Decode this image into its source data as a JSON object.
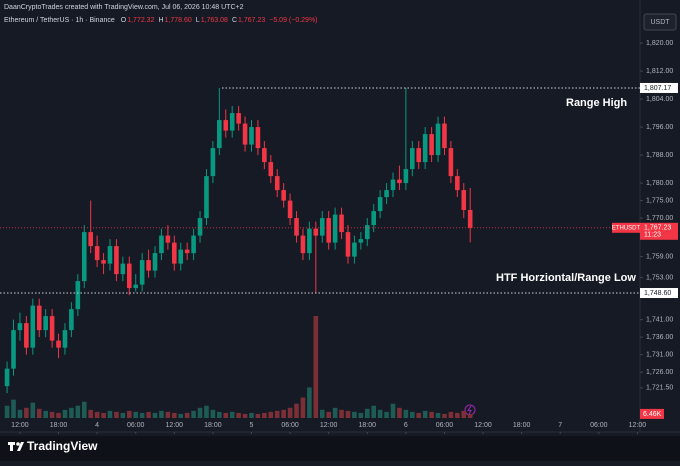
{
  "header": {
    "credit": "DaanCryptoTrades created with TradingView.com, Jul 06, 2026 10:48 UTC+2",
    "symbol": "Ethereum / TetherUS · 1h · Binance",
    "ohlc": [
      {
        "key": "O",
        "value": "1,772.32"
      },
      {
        "key": "H",
        "value": "1,778.60"
      },
      {
        "key": "L",
        "value": "1,763.08"
      },
      {
        "key": "C",
        "value": "1,767.23"
      }
    ],
    "change": "−5.09 (−0.29%)"
  },
  "chart_data": {
    "type": "candlestick",
    "x": [
      -2,
      -1,
      0,
      1,
      2,
      3,
      4,
      5,
      6,
      7,
      8,
      9,
      10,
      11,
      12,
      13,
      14,
      15,
      16,
      17,
      18,
      19,
      20,
      21,
      22,
      23,
      24,
      25,
      26,
      27,
      28,
      29,
      30,
      31,
      32,
      33,
      34,
      35,
      36,
      37,
      38,
      39,
      40,
      41,
      42,
      43,
      44,
      45,
      46,
      47,
      48,
      49,
      50,
      51,
      52,
      53,
      54,
      55,
      56,
      57,
      58,
      59,
      60,
      61,
      62,
      63,
      64,
      65,
      66,
      67,
      68,
      69,
      70
    ],
    "open": [
      1722,
      1727,
      1738,
      1740,
      1733,
      1745,
      1738,
      1742,
      1735,
      1733,
      1738,
      1744,
      1752,
      1766,
      1762,
      1758,
      1757,
      1762,
      1754,
      1757,
      1750,
      1751,
      1758,
      1755,
      1760,
      1765,
      1763,
      1757,
      1761,
      1760,
      1765,
      1770,
      1782,
      1790,
      1798,
      1795,
      1800,
      1797,
      1791,
      1796,
      1790,
      1786,
      1782,
      1778,
      1775,
      1770,
      1765,
      1760,
      1767,
      1765,
      1770,
      1763,
      1771,
      1766,
      1759,
      1763,
      1764,
      1768,
      1772,
      1776,
      1778,
      1781,
      1780,
      1784,
      1790,
      1786,
      1794,
      1788,
      1797,
      1790,
      1782,
      1778,
      1772.32
    ],
    "high": [
      1729,
      1741,
      1743,
      1742,
      1747,
      1747,
      1744,
      1744,
      1737,
      1740,
      1746,
      1754,
      1768,
      1775,
      1765,
      1760,
      1764,
      1764,
      1759,
      1759,
      1754,
      1760,
      1761,
      1762,
      1767,
      1768,
      1765,
      1763,
      1763,
      1767,
      1772,
      1784,
      1792,
      1807.17,
      1801,
      1802,
      1802,
      1799,
      1798,
      1798,
      1792,
      1788,
      1784,
      1780,
      1777,
      1772,
      1767,
      1769,
      1769,
      1772,
      1772,
      1773,
      1773,
      1768,
      1765,
      1766,
      1770,
      1774,
      1778,
      1780,
      1783,
      1785,
      1807.17,
      1792,
      1792,
      1796,
      1796,
      1799,
      1799,
      1792,
      1784,
      1780,
      1778.6
    ],
    "low": [
      1720,
      1725,
      1735,
      1731,
      1731,
      1736,
      1736,
      1733,
      1730,
      1731,
      1736,
      1742,
      1750,
      1760,
      1756,
      1754,
      1755,
      1752,
      1752,
      1748,
      1749,
      1749,
      1753,
      1753,
      1758,
      1761,
      1755,
      1755,
      1758,
      1758,
      1763,
      1768,
      1780,
      1788,
      1793,
      1793,
      1795,
      1789,
      1789,
      1788,
      1784,
      1780,
      1776,
      1773,
      1768,
      1763,
      1758,
      1758,
      1748.6,
      1763,
      1761,
      1761,
      1764,
      1757,
      1757,
      1761,
      1762,
      1766,
      1770,
      1774,
      1776,
      1778,
      1778,
      1782,
      1784,
      1784,
      1786,
      1786,
      1788,
      1780,
      1776,
      1770,
      1763.08
    ],
    "close": [
      1727,
      1738,
      1740,
      1733,
      1745,
      1738,
      1742,
      1735,
      1733,
      1738,
      1744,
      1752,
      1766,
      1762,
      1758,
      1757,
      1762,
      1754,
      1757,
      1750,
      1751,
      1758,
      1755,
      1760,
      1765,
      1763,
      1757,
      1761,
      1760,
      1765,
      1770,
      1782,
      1790,
      1798,
      1795,
      1800,
      1797,
      1791,
      1796,
      1790,
      1786,
      1782,
      1778,
      1775,
      1770,
      1765,
      1760,
      1767,
      1765,
      1770,
      1763,
      1771,
      1766,
      1759,
      1763,
      1764,
      1768,
      1772,
      1776,
      1778,
      1781,
      1780,
      1784,
      1790,
      1786,
      1794,
      1788,
      1797,
      1790,
      1782,
      1778,
      1772.32,
      1767.23
    ],
    "volume": [
      12,
      18,
      8,
      10,
      15,
      9,
      7,
      6,
      5,
      8,
      10,
      12,
      16,
      8,
      6,
      5,
      7,
      6,
      5,
      7,
      6,
      5,
      6,
      5,
      7,
      6,
      5,
      4,
      5,
      7,
      10,
      12,
      8,
      6,
      5,
      6,
      5,
      4,
      5,
      4,
      5,
      6,
      7,
      8,
      10,
      14,
      20,
      30,
      100,
      8,
      6,
      10,
      8,
      7,
      6,
      5,
      9,
      12,
      8,
      6,
      14,
      10,
      8,
      6,
      5,
      7,
      6,
      5,
      4,
      6,
      5,
      7,
      4
    ],
    "vlim": [
      0,
      100
    ],
    "up_color": "#089981",
    "down_color": "#f23645",
    "up_volume_color": "#1d5b55",
    "down_volume_color": "#7c2f36",
    "xlim": [
      -3.1,
      96.4
    ],
    "xticks": [
      {
        "value": 0,
        "label": "12:00"
      },
      {
        "value": 6,
        "label": "18:00"
      },
      {
        "value": 12,
        "label": "4"
      },
      {
        "value": 18,
        "label": "06:00"
      },
      {
        "value": 24,
        "label": "12:00"
      },
      {
        "value": 30,
        "label": "18:00"
      },
      {
        "value": 36,
        "label": "5"
      },
      {
        "value": 42,
        "label": "06:00"
      },
      {
        "value": 48,
        "label": "12:00"
      },
      {
        "value": 54,
        "label": "18:00"
      },
      {
        "value": 60,
        "label": "6"
      },
      {
        "value": 66,
        "label": "06:00"
      },
      {
        "value": 72,
        "label": "12:00"
      },
      {
        "value": 78,
        "label": "18:00"
      },
      {
        "value": 84,
        "label": "7"
      },
      {
        "value": 90,
        "label": "06:00"
      },
      {
        "value": 96,
        "label": "12:00"
      }
    ],
    "ylim": [
      1712.9,
      1832.3
    ],
    "yticks": [
      {
        "value": 1820,
        "label": "1,820.00"
      },
      {
        "value": 1812,
        "label": "1,812.00"
      },
      {
        "value": 1804,
        "label": "1,804.00"
      },
      {
        "value": 1796,
        "label": "1,796.00"
      },
      {
        "value": 1788,
        "label": "1,788.00"
      },
      {
        "value": 1780,
        "label": "1,780.00"
      },
      {
        "value": 1775,
        "label": "1,775.00"
      },
      {
        "value": 1770,
        "label": "1,770.00"
      },
      {
        "value": 1759,
        "label": "1,759.00"
      },
      {
        "value": 1753,
        "label": "1,753.00"
      },
      {
        "value": 1741,
        "label": "1,741.00"
      },
      {
        "value": 1736,
        "label": "1,736.00"
      },
      {
        "value": 1731,
        "label": "1,731.00"
      },
      {
        "value": 1726,
        "label": "1,726.00"
      },
      {
        "value": 1721.5,
        "label": "1,721.50"
      }
    ],
    "currency": "USDT",
    "levels": [
      {
        "value": 1807.17,
        "label": "1,807.17",
        "text": "Range High"
      },
      {
        "value": 1748.6,
        "label": "1,748.60",
        "text": "HTF Horziontal/Range Low"
      }
    ],
    "last": {
      "symbol": "ETHUSDT",
      "value": 1767.23,
      "label": "1,767.23",
      "countdown": "11:23"
    },
    "volume_label": "6.46K"
  },
  "footer": {
    "brand": "TradingView"
  }
}
